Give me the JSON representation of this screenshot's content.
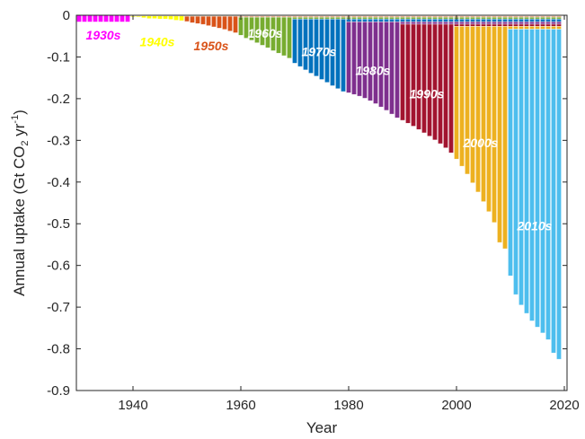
{
  "chart_data": {
    "type": "bar",
    "stacked": true,
    "xlabel": "Year",
    "ylabel": "Annual uptake (Gt CO",
    "ylabel_sub": "2",
    "ylabel_unit": " yr",
    "ylabel_sup": "-1",
    "ylabel_close": ")",
    "xlim": [
      1929.5,
      2020.5
    ],
    "ylim": [
      -0.9,
      0
    ],
    "x_ticks": [
      1940,
      1960,
      1980,
      2000,
      2020
    ],
    "y_ticks": [
      0,
      -0.1,
      -0.2,
      -0.3,
      -0.4,
      -0.5,
      -0.6,
      -0.7,
      -0.8,
      -0.9
    ],
    "y_tick_labels": [
      "0",
      "-0.1",
      "-0.2",
      "-0.3",
      "-0.4",
      "-0.5",
      "-0.6",
      "-0.7",
      "-0.8",
      "-0.9"
    ],
    "grid": false,
    "series": [
      {
        "name": "1930s",
        "color": "#FF00FF",
        "start": 1930,
        "annual": 0.0016
      },
      {
        "name": "1940s",
        "color": "#FFFF00",
        "start": 1940,
        "annual": 0.0008
      },
      {
        "name": "1950s",
        "color": "#D95319",
        "start": 1950,
        "annual": 0.0022
      },
      {
        "name": "1960s",
        "color": "#77AC30",
        "start": 1960,
        "annual": 0.0045
      },
      {
        "name": "1970s",
        "color": "#0072BD",
        "start": 1970,
        "annual": 0.0065
      },
      {
        "name": "1980s",
        "color": "#7E2F8E",
        "start": 1980,
        "annual": 0.0058
      },
      {
        "name": "1990s",
        "color": "#A2142F",
        "start": 1990,
        "annual": 0.0052
      },
      {
        "name": "2000s",
        "color": "#EDB120",
        "start": 2000,
        "annual": 0.0068
      },
      {
        "name": "2010s",
        "color": "#4DBEEE",
        "start": 2010,
        "annual": 0.0084
      }
    ],
    "totals": {
      "1930": -0.016,
      "1931": -0.016,
      "1932": -0.016,
      "1933": -0.016,
      "1934": -0.016,
      "1935": -0.016,
      "1936": -0.016,
      "1937": -0.016,
      "1938": -0.016,
      "1939": -0.016,
      "1940": -0.004,
      "1941": -0.004,
      "1942": -0.006,
      "1943": -0.008,
      "1944": -0.008,
      "1945": -0.009,
      "1946": -0.009,
      "1947": -0.01,
      "1948": -0.012,
      "1949": -0.013,
      "1950": -0.015,
      "1951": -0.018,
      "1952": -0.02,
      "1953": -0.022,
      "1954": -0.025,
      "1955": -0.028,
      "1956": -0.031,
      "1957": -0.034,
      "1958": -0.038,
      "1959": -0.042,
      "1960": -0.048,
      "1961": -0.055,
      "1962": -0.06,
      "1963": -0.066,
      "1964": -0.072,
      "1965": -0.078,
      "1966": -0.085,
      "1967": -0.091,
      "1968": -0.097,
      "1969": -0.103,
      "1970": -0.115,
      "1971": -0.123,
      "1972": -0.131,
      "1973": -0.139,
      "1974": -0.146,
      "1975": -0.154,
      "1976": -0.161,
      "1977": -0.169,
      "1978": -0.176,
      "1979": -0.183,
      "1980": -0.186,
      "1981": -0.19,
      "1982": -0.194,
      "1983": -0.199,
      "1984": -0.205,
      "1985": -0.212,
      "1986": -0.22,
      "1987": -0.228,
      "1988": -0.237,
      "1989": -0.246,
      "1990": -0.252,
      "1991": -0.259,
      "1992": -0.266,
      "1993": -0.274,
      "1994": -0.282,
      "1995": -0.29,
      "1996": -0.299,
      "1997": -0.308,
      "1998": -0.318,
      "1999": -0.33,
      "2000": -0.345,
      "2001": -0.362,
      "2002": -0.381,
      "2003": -0.402,
      "2004": -0.424,
      "2005": -0.447,
      "2006": -0.471,
      "2007": -0.497,
      "2008": -0.545,
      "2009": -0.56,
      "2010": -0.625,
      "2011": -0.67,
      "2012": -0.695,
      "2013": -0.715,
      "2014": -0.733,
      "2015": -0.748,
      "2016": -0.762,
      "2017": -0.778,
      "2018": -0.81,
      "2019": -0.825
    },
    "decade_labels": [
      {
        "text": "1930s",
        "x": 1934.5,
        "y": -0.058,
        "color": "#FF00FF"
      },
      {
        "text": "1940s",
        "x": 1944.5,
        "y": -0.074,
        "color": "#FFFF00"
      },
      {
        "text": "1950s",
        "x": 1954.5,
        "y": -0.084,
        "color": "#D95319"
      },
      {
        "text": "1960s",
        "x": 1964.5,
        "y": -0.054,
        "color": "#FFFFFF"
      },
      {
        "text": "1970s",
        "x": 1974.5,
        "y": -0.098,
        "color": "#FFFFFF"
      },
      {
        "text": "1980s",
        "x": 1984.5,
        "y": -0.143,
        "color": "#FFFFFF"
      },
      {
        "text": "1990s",
        "x": 1994.5,
        "y": -0.199,
        "color": "#FFFFFF"
      },
      {
        "text": "2000s",
        "x": 2004.5,
        "y": -0.316,
        "color": "#FFFFFF"
      },
      {
        "text": "2010s",
        "x": 2014.5,
        "y": -0.516,
        "color": "#FFFFFF"
      }
    ]
  }
}
